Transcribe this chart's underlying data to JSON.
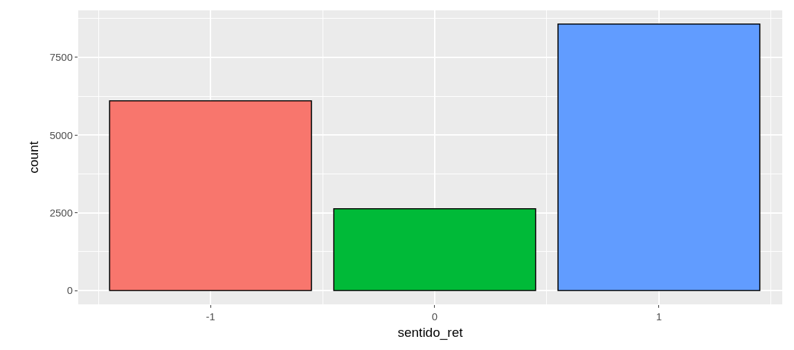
{
  "chart_data": {
    "type": "bar",
    "xlabel": "sentido_ret",
    "ylabel": "count",
    "x": [
      -1,
      0,
      1
    ],
    "values": [
      6100,
      2630,
      8570
    ],
    "colors": [
      "#f8766d",
      "#00ba38",
      "#619cff"
    ],
    "xlim": [
      -1.59,
      1.55
    ],
    "xticks": [
      {
        "value": -1,
        "label": "-1"
      },
      0,
      1
    ],
    "ylim": [
      -445,
      9010
    ],
    "yticks": [
      0,
      2500,
      5000,
      7500
    ],
    "grid": true
  }
}
